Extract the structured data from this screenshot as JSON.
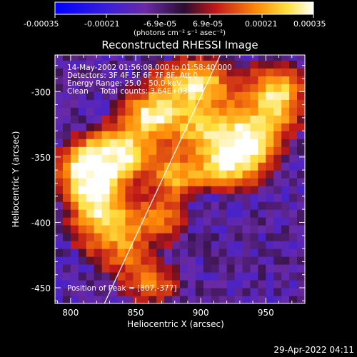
{
  "chart_data": {
    "type": "heatmap",
    "title": "Reconstructed RHESSI Image",
    "xlabel": "Heliocentric X (arcsec)",
    "ylabel": "Heliocentric Y (arcsec)",
    "xlim": [
      788,
      980
    ],
    "ylim": [
      -462,
      -272
    ],
    "x_ticks": [
      800,
      850,
      900,
      950
    ],
    "y_ticks": [
      -300,
      -350,
      -400,
      -450
    ],
    "colorbar": {
      "ticks": [
        "-0.00035",
        "-0.00021",
        "-6.9e-05",
        "6.9e-05",
        "0.00021",
        "0.00035"
      ],
      "range": [
        -0.00035,
        0.00035
      ],
      "unit_line": "(photons cm⁻² s⁻¹ asec⁻²)"
    },
    "annotations": [
      "14-May-2002 01:56:08.000 to 01:58:40.000",
      "Detectors: 3F 4F 5F 6F 7F 8F, Att 0",
      "Energy Range: 25.0 - 50.0 keV",
      "Clean     Total counts: 3.64E+03"
    ],
    "peak_label": "Position of Peak = [807,-377]",
    "peak": [
      807,
      -377
    ],
    "limb_line": {
      "points": [
        [
          826,
          -462
        ],
        [
          915,
          -272
        ]
      ],
      "color": "#ffffff"
    },
    "emission_blobs": [
      {
        "x": 815,
        "y": -362,
        "sx": 14,
        "sy": 14,
        "a": 1.0
      },
      {
        "x": 838,
        "y": -347,
        "sx": 18,
        "sy": 12,
        "a": 0.85
      },
      {
        "x": 822,
        "y": -392,
        "sx": 14,
        "sy": 22,
        "a": 0.7
      },
      {
        "x": 862,
        "y": -318,
        "sx": 16,
        "sy": 12,
        "a": 0.8
      },
      {
        "x": 895,
        "y": -293,
        "sx": 20,
        "sy": 12,
        "a": 0.75
      },
      {
        "x": 905,
        "y": -330,
        "sx": 18,
        "sy": 16,
        "a": 0.7
      },
      {
        "x": 937,
        "y": -340,
        "sx": 14,
        "sy": 16,
        "a": 0.85
      },
      {
        "x": 958,
        "y": -305,
        "sx": 14,
        "sy": 16,
        "a": 0.8
      },
      {
        "x": 915,
        "y": -360,
        "sx": 16,
        "sy": 10,
        "a": 0.55
      },
      {
        "x": 880,
        "y": -365,
        "sx": 12,
        "sy": 10,
        "a": 0.5
      },
      {
        "x": 868,
        "y": -395,
        "sx": 14,
        "sy": 14,
        "a": 0.45
      },
      {
        "x": 843,
        "y": -415,
        "sx": 10,
        "sy": 18,
        "a": 0.4
      },
      {
        "x": 863,
        "y": -445,
        "sx": 14,
        "sy": 10,
        "a": 0.45
      }
    ],
    "grid": false,
    "colormap": "blue-purple-red-yellow-white"
  },
  "footer_timestamp": "29-Apr-2022 04:11"
}
